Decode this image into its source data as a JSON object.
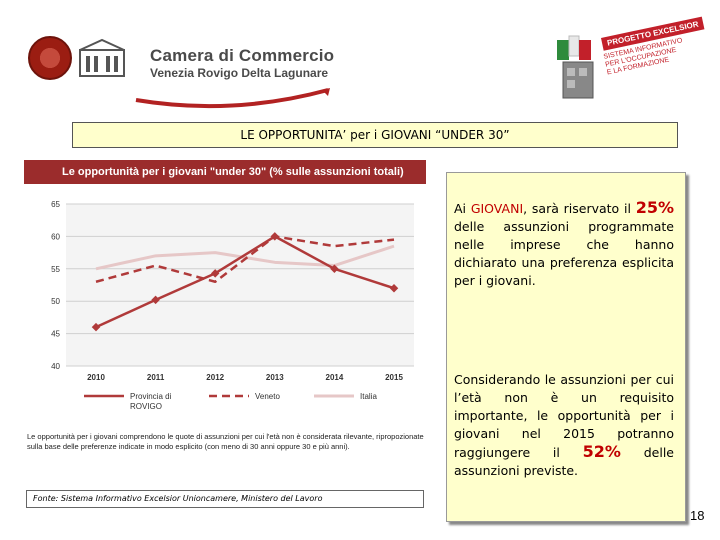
{
  "header": {
    "org_name": "Camera di Commercio",
    "org_sub": "Venezia Rovigo Delta Lagunare",
    "project_title": "PROGETTO EXCELSIOR",
    "project_sub": "SISTEMA INFORMATIVO\nPER L'OCCUPAZIONE\nE LA FORMAZIONE"
  },
  "slide_title": "LE OPPORTUNITA’ per i GIOVANI “UNDER 30”",
  "chart_title": "Le opportunità per i giovani \"under 30\" (% sulle assunzioni totali)",
  "chart_note": "Le opportunità per i giovani comprendono le quote di assunzioni per cui l'età non è considerata rilevante, ripropozionate sulla base delle preferenze indicate in modo esplicito (con meno di 30 anni oppure 30 e più anni).",
  "source": "Fonte: Sistema Informativo Excelsior Unioncamere, Ministero del Lavoro",
  "panel": {
    "p1_a": "Ai ",
    "p1_hl": "GIOVANI",
    "p1_b": ", sarà riservato il ",
    "p1_big": "25%",
    "p1_c": " delle assunzioni programmate nelle imprese che hanno dichiarato una preferenza esplicita per i giovani.",
    "p2_a": "Considerando le assunzioni per cui l’età non è un requisito importante, le opportunità per i giovani nel 2015 potranno raggiungere il ",
    "p2_big": "52%",
    "p2_b": " delle assunzioni previste."
  },
  "page_number": "18",
  "colors": {
    "rovigo": "#b03a3a",
    "veneto": "#b03a3a",
    "italia": "#e6c7c7",
    "accent": "#c00000",
    "panel_bg": "#ffffcc"
  },
  "chart_data": {
    "type": "line",
    "x": [
      "2010",
      "2011",
      "2012",
      "2013",
      "2014",
      "2015"
    ],
    "ylim": [
      40,
      65
    ],
    "yticks": [
      "40",
      "45",
      "50",
      "55",
      "60",
      "65"
    ],
    "series": [
      {
        "name": "Provincia di ROVIGO",
        "values": [
          46,
          50.2,
          54.3,
          60,
          55,
          52
        ],
        "style": "solid-markers"
      },
      {
        "name": "Veneto",
        "values": [
          53,
          55.5,
          53,
          60,
          58.5,
          59.5
        ],
        "style": "dashed"
      },
      {
        "name": "Italia",
        "values": [
          55,
          57,
          57.5,
          56,
          55.5,
          58.5
        ],
        "style": "light"
      }
    ],
    "legend": "bottom"
  }
}
